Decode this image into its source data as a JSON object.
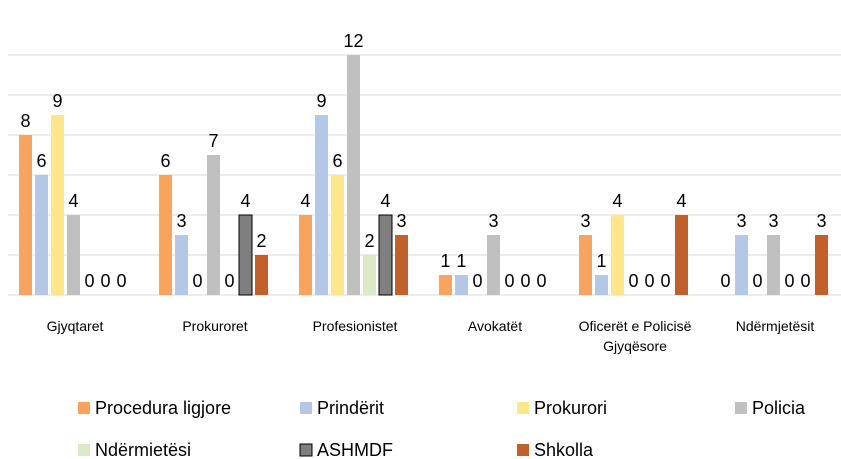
{
  "chart_data": {
    "type": "bar",
    "categories": [
      "Gjyqtaret",
      "Prokuroret",
      "Profesionistet",
      "Avokatët",
      "Oficerët e Policisë Gjyqësore",
      "Ndërmjetësit"
    ],
    "series": [
      {
        "name": "Procedura ligjore",
        "color": "#f8a35e",
        "values": [
          8,
          6,
          4,
          1,
          3,
          0
        ]
      },
      {
        "name": "Prindërit",
        "color": "#b4c7e7",
        "values": [
          6,
          3,
          9,
          1,
          1,
          3
        ]
      },
      {
        "name": "Prokurori",
        "color": "#ffe68a",
        "values": [
          9,
          0,
          6,
          0,
          4,
          0
        ]
      },
      {
        "name": "Policia",
        "color": "#c0c0c0",
        "values": [
          4,
          7,
          12,
          3,
          0,
          3
        ]
      },
      {
        "name": "Ndërmietësi",
        "color": "#dbe9c6",
        "values": [
          0,
          0,
          2,
          0,
          0,
          0
        ]
      },
      {
        "name": "ASHMDF",
        "color": "#7f7f7f",
        "border": "#000000",
        "values": [
          0,
          4,
          4,
          0,
          0,
          0
        ]
      },
      {
        "name": "Shkolla",
        "color": "#c0602a",
        "values": [
          0,
          2,
          3,
          0,
          4,
          3
        ]
      }
    ],
    "ylim": [
      0,
      12
    ],
    "yticks": [
      0,
      2,
      4,
      6,
      8,
      10,
      12
    ],
    "grid": true
  }
}
